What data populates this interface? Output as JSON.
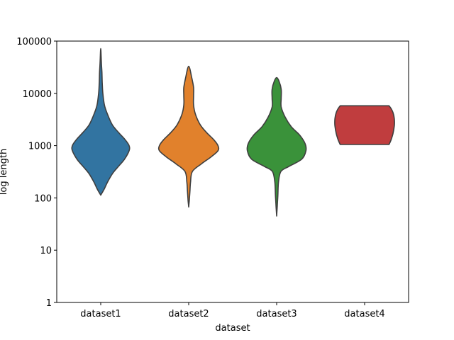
{
  "chart_data": {
    "type": "violin",
    "xlabel": "dataset",
    "ylabel": "log length",
    "yscale": "log",
    "ylim": [
      1,
      100000
    ],
    "yticks": [
      "1",
      "10",
      "100",
      "1000",
      "10000",
      "100000"
    ],
    "categories": [
      "dataset1",
      "dataset2",
      "dataset3",
      "dataset4"
    ],
    "series": [
      {
        "category": "dataset1",
        "color": "#3274a1",
        "min": 113,
        "max": 72000,
        "shape": [
          [
            113,
            0.0
          ],
          [
            150,
            0.12
          ],
          [
            200,
            0.22
          ],
          [
            300,
            0.4
          ],
          [
            400,
            0.58
          ],
          [
            550,
            0.78
          ],
          [
            800,
            0.93
          ],
          [
            1000,
            0.93
          ],
          [
            1300,
            0.8
          ],
          [
            1800,
            0.58
          ],
          [
            2500,
            0.38
          ],
          [
            4000,
            0.22
          ],
          [
            6000,
            0.12
          ],
          [
            10000,
            0.07
          ],
          [
            15000,
            0.05
          ],
          [
            25000,
            0.04
          ],
          [
            40000,
            0.02
          ],
          [
            72000,
            0.0
          ]
        ]
      },
      {
        "category": "dataset2",
        "color": "#e1812c",
        "min": 67,
        "max": 33000,
        "shape": [
          [
            67,
            0.0
          ],
          [
            90,
            0.02
          ],
          [
            130,
            0.04
          ],
          [
            200,
            0.06
          ],
          [
            320,
            0.12
          ],
          [
            450,
            0.42
          ],
          [
            600,
            0.72
          ],
          [
            800,
            0.96
          ],
          [
            1000,
            0.96
          ],
          [
            1300,
            0.82
          ],
          [
            1800,
            0.58
          ],
          [
            2500,
            0.38
          ],
          [
            4000,
            0.22
          ],
          [
            6000,
            0.16
          ],
          [
            9000,
            0.16
          ],
          [
            13000,
            0.16
          ],
          [
            20000,
            0.1
          ],
          [
            33000,
            0.0
          ]
        ]
      },
      {
        "category": "dataset3",
        "color": "#3a923a",
        "min": 45,
        "max": 20000,
        "shape": [
          [
            45,
            0.0
          ],
          [
            70,
            0.02
          ],
          [
            110,
            0.04
          ],
          [
            200,
            0.06
          ],
          [
            320,
            0.14
          ],
          [
            400,
            0.4
          ],
          [
            550,
            0.82
          ],
          [
            800,
            0.96
          ],
          [
            1100,
            0.93
          ],
          [
            1600,
            0.75
          ],
          [
            2300,
            0.48
          ],
          [
            3500,
            0.28
          ],
          [
            5500,
            0.15
          ],
          [
            8000,
            0.15
          ],
          [
            12000,
            0.15
          ],
          [
            17000,
            0.08
          ],
          [
            20000,
            0.0
          ]
        ]
      },
      {
        "category": "dataset4",
        "color": "#c03d3e",
        "min": 1050,
        "max": 5800,
        "shape": [
          [
            1050,
            0.8
          ],
          [
            1300,
            0.87
          ],
          [
            1700,
            0.93
          ],
          [
            2300,
            0.97
          ],
          [
            2700,
            0.98
          ],
          [
            3400,
            0.97
          ],
          [
            4300,
            0.93
          ],
          [
            5100,
            0.87
          ],
          [
            5800,
            0.8
          ]
        ]
      }
    ]
  }
}
